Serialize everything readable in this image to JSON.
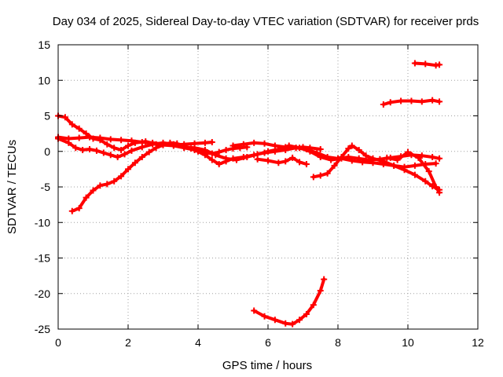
{
  "chart_data": {
    "type": "scatter",
    "title": "Day 034 of 2025, Sidereal Day-to-day VTEC variation (SDTVAR) for receiver prds",
    "xlabel": "GPS time / hours",
    "ylabel": "SDTVAR / TECUs",
    "xlim": [
      0,
      12
    ],
    "ylim": [
      -25,
      15
    ],
    "xticks": [
      0,
      2,
      4,
      6,
      8,
      10,
      12
    ],
    "yticks": [
      -25,
      -20,
      -15,
      -10,
      -5,
      0,
      5,
      10,
      15
    ],
    "grid": true,
    "marker": "+",
    "colors": {
      "series": "#ff0000",
      "axis": "#000000",
      "grid": "#a0a0a0"
    },
    "series": [
      {
        "name": "s1",
        "points": [
          [
            0.0,
            5.0
          ],
          [
            0.2,
            4.8
          ],
          [
            0.4,
            3.8
          ],
          [
            0.6,
            3.2
          ],
          [
            0.8,
            2.5
          ],
          [
            1.0,
            1.8
          ],
          [
            1.2,
            1.6
          ],
          [
            1.4,
            1.0
          ],
          [
            1.6,
            0.5
          ],
          [
            1.8,
            0.2
          ],
          [
            2.0,
            0.8
          ],
          [
            2.2,
            1.2
          ],
          [
            2.5,
            1.4
          ],
          [
            2.8,
            1.0
          ],
          [
            3.0,
            0.9
          ],
          [
            3.3,
            0.8
          ],
          [
            3.6,
            0.5
          ],
          [
            3.9,
            0.2
          ],
          [
            4.2,
            -0.5
          ],
          [
            4.4,
            -1.2
          ],
          [
            4.6,
            -1.8
          ],
          [
            4.8,
            -1.4
          ],
          [
            5.0,
            -1.0
          ],
          [
            5.3,
            -0.8
          ],
          [
            5.6,
            -0.5
          ],
          [
            5.9,
            -0.2
          ],
          [
            6.2,
            0.0
          ],
          [
            6.5,
            0.2
          ],
          [
            6.8,
            0.5
          ],
          [
            7.0,
            0.6
          ],
          [
            7.2,
            0.5
          ],
          [
            7.5,
            0.3
          ]
        ]
      },
      {
        "name": "s2",
        "points": [
          [
            0.0,
            1.8
          ],
          [
            0.3,
            1.2
          ],
          [
            0.5,
            0.5
          ],
          [
            0.7,
            0.2
          ],
          [
            0.9,
            0.3
          ],
          [
            1.1,
            0.1
          ],
          [
            1.3,
            -0.2
          ],
          [
            1.5,
            -0.5
          ],
          [
            1.7,
            -0.8
          ],
          [
            1.9,
            -0.4
          ],
          [
            2.1,
            0.1
          ],
          [
            2.4,
            0.6
          ],
          [
            2.7,
            1.0
          ],
          [
            3.0,
            1.2
          ],
          [
            3.3,
            1.0
          ],
          [
            3.6,
            0.6
          ],
          [
            3.9,
            0.5
          ],
          [
            4.2,
            0.2
          ],
          [
            4.5,
            -0.5
          ],
          [
            4.8,
            -1.0
          ],
          [
            5.1,
            -1.2
          ],
          [
            5.4,
            -0.8
          ],
          [
            5.7,
            -0.4
          ],
          [
            6.0,
            0.0
          ],
          [
            6.3,
            0.3
          ],
          [
            6.6,
            0.8
          ],
          [
            6.9,
            0.5
          ],
          [
            7.2,
            0.0
          ],
          [
            7.5,
            -0.8
          ],
          [
            7.8,
            -1.2
          ],
          [
            8.1,
            -1.0
          ],
          [
            8.4,
            -1.3
          ],
          [
            8.7,
            -1.5
          ],
          [
            9.0,
            -1.6
          ],
          [
            9.3,
            -1.8
          ],
          [
            9.6,
            -2.0
          ],
          [
            9.9,
            -2.2
          ],
          [
            10.2,
            -2.0
          ],
          [
            10.5,
            -1.8
          ],
          [
            10.8,
            -1.7
          ]
        ]
      },
      {
        "name": "s3",
        "points": [
          [
            0.0,
            2.0
          ],
          [
            0.3,
            1.8
          ],
          [
            0.6,
            1.9
          ],
          [
            0.9,
            2.0
          ],
          [
            1.2,
            1.9
          ],
          [
            1.5,
            1.7
          ],
          [
            1.8,
            1.6
          ],
          [
            2.1,
            1.5
          ],
          [
            2.4,
            1.3
          ],
          [
            2.7,
            1.2
          ],
          [
            3.0,
            1.0
          ],
          [
            3.3,
            0.9
          ],
          [
            3.6,
            1.0
          ],
          [
            3.9,
            1.1
          ],
          [
            4.2,
            1.2
          ],
          [
            4.4,
            1.3
          ]
        ]
      },
      {
        "name": "s4",
        "points": [
          [
            0.4,
            -8.4
          ],
          [
            0.6,
            -8.0
          ],
          [
            0.8,
            -6.5
          ],
          [
            1.0,
            -5.5
          ],
          [
            1.2,
            -4.8
          ],
          [
            1.4,
            -4.6
          ],
          [
            1.6,
            -4.2
          ],
          [
            1.8,
            -3.5
          ],
          [
            2.0,
            -2.5
          ],
          [
            2.2,
            -1.6
          ],
          [
            2.4,
            -0.8
          ],
          [
            2.6,
            -0.1
          ],
          [
            2.8,
            0.5
          ],
          [
            3.0,
            0.9
          ],
          [
            3.2,
            1.2
          ],
          [
            3.4,
            1.1
          ],
          [
            3.6,
            0.7
          ],
          [
            3.8,
            0.4
          ],
          [
            4.0,
            0.0
          ],
          [
            4.2,
            -0.2
          ],
          [
            4.4,
            -0.3
          ],
          [
            4.6,
            -0.1
          ],
          [
            4.8,
            0.2
          ],
          [
            5.0,
            0.4
          ],
          [
            5.2,
            0.5
          ],
          [
            5.4,
            0.6
          ]
        ]
      },
      {
        "name": "s5",
        "points": [
          [
            5.0,
            0.8
          ],
          [
            5.3,
            1.0
          ],
          [
            5.6,
            1.2
          ],
          [
            5.9,
            1.1
          ],
          [
            6.2,
            0.8
          ],
          [
            6.5,
            0.6
          ],
          [
            6.8,
            0.5
          ],
          [
            7.1,
            0.3
          ],
          [
            7.4,
            -0.2
          ],
          [
            7.7,
            -0.8
          ],
          [
            8.0,
            -1.0
          ],
          [
            8.3,
            -0.8
          ],
          [
            8.6,
            -1.0
          ],
          [
            8.9,
            -1.2
          ],
          [
            9.2,
            -1.1
          ],
          [
            9.5,
            -0.9
          ],
          [
            9.8,
            -0.7
          ],
          [
            10.1,
            -0.5
          ],
          [
            10.4,
            -0.6
          ],
          [
            10.7,
            -0.8
          ],
          [
            10.9,
            -1.0
          ]
        ]
      },
      {
        "name": "s6",
        "points": [
          [
            5.7,
            -1.1
          ],
          [
            6.0,
            -1.3
          ],
          [
            6.3,
            -1.6
          ],
          [
            6.5,
            -1.4
          ],
          [
            6.7,
            -0.9
          ],
          [
            6.9,
            -1.5
          ],
          [
            7.1,
            -1.8
          ]
        ]
      },
      {
        "name": "s7",
        "points": [
          [
            7.3,
            -3.6
          ],
          [
            7.5,
            -3.4
          ],
          [
            7.7,
            -3.1
          ],
          [
            7.9,
            -2.0
          ],
          [
            8.1,
            -0.8
          ],
          [
            8.3,
            0.4
          ],
          [
            8.4,
            0.8
          ],
          [
            8.6,
            0.2
          ],
          [
            8.8,
            -0.6
          ],
          [
            9.0,
            -1.0
          ],
          [
            9.3,
            -1.4
          ],
          [
            9.6,
            -2.0
          ],
          [
            9.9,
            -2.6
          ],
          [
            10.2,
            -3.3
          ],
          [
            10.5,
            -4.2
          ],
          [
            10.7,
            -4.9
          ],
          [
            10.9,
            -5.4
          ]
        ]
      },
      {
        "name": "s8",
        "points": [
          [
            9.4,
            -0.9
          ],
          [
            9.7,
            -1.2
          ],
          [
            10.0,
            -0.1
          ],
          [
            10.3,
            -0.9
          ],
          [
            10.6,
            -2.8
          ],
          [
            10.8,
            -5.0
          ],
          [
            10.9,
            -5.8
          ]
        ]
      },
      {
        "name": "s9",
        "points": [
          [
            5.6,
            -22.4
          ],
          [
            5.9,
            -23.2
          ],
          [
            6.2,
            -23.7
          ],
          [
            6.5,
            -24.2
          ],
          [
            6.7,
            -24.3
          ],
          [
            6.9,
            -23.7
          ],
          [
            7.1,
            -22.9
          ],
          [
            7.3,
            -21.6
          ],
          [
            7.5,
            -19.6
          ],
          [
            7.6,
            -18.0
          ]
        ]
      },
      {
        "name": "s10",
        "points": [
          [
            9.3,
            6.6
          ],
          [
            9.5,
            6.9
          ],
          [
            9.8,
            7.1
          ],
          [
            10.1,
            7.1
          ],
          [
            10.4,
            7.0
          ],
          [
            10.7,
            7.2
          ],
          [
            10.9,
            7.0
          ]
        ]
      },
      {
        "name": "s11",
        "points": [
          [
            10.2,
            12.4
          ],
          [
            10.5,
            12.3
          ],
          [
            10.8,
            12.1
          ],
          [
            10.9,
            12.2
          ]
        ]
      }
    ]
  }
}
